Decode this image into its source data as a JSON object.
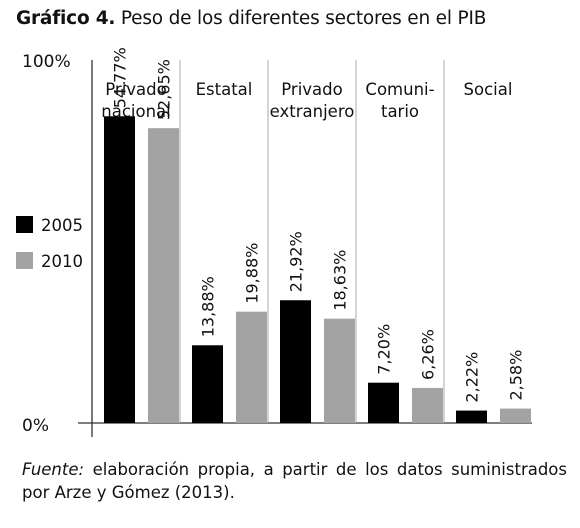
{
  "title": {
    "prefix": "Gráfico 4.",
    "text": "Peso de los diferentes sectores en el PIB"
  },
  "source": {
    "label": "Fuente:",
    "text": "elaboración propia, a partir de los datos suministrados por Arze y Gómez (2013)."
  },
  "chart_data": {
    "type": "bar",
    "title": "Peso de los diferentes sectores en el PIB",
    "categories": [
      [
        "Privado",
        "nacional"
      ],
      [
        "Estatal"
      ],
      [
        "Privado",
        "extranjero"
      ],
      [
        "Comuni-",
        "tario"
      ],
      [
        "Social"
      ]
    ],
    "series": [
      {
        "name": "2005",
        "color": "#000000",
        "values": [
          54.77,
          13.88,
          21.92,
          7.2,
          2.22
        ],
        "labels": [
          "54,77%",
          "13,88%",
          "21,92%",
          "7,20%",
          "2,22%"
        ]
      },
      {
        "name": "2010",
        "color": "#a3a3a3",
        "values": [
          52.65,
          19.88,
          18.63,
          6.26,
          2.58
        ],
        "labels": [
          "52,65%",
          "19,88%",
          "18,63%",
          "6,26%",
          "2,58%"
        ]
      }
    ],
    "ylim": [
      0,
      100
    ],
    "yticks": [
      "0%",
      "100%"
    ],
    "legend_position": "left",
    "grid": false
  }
}
